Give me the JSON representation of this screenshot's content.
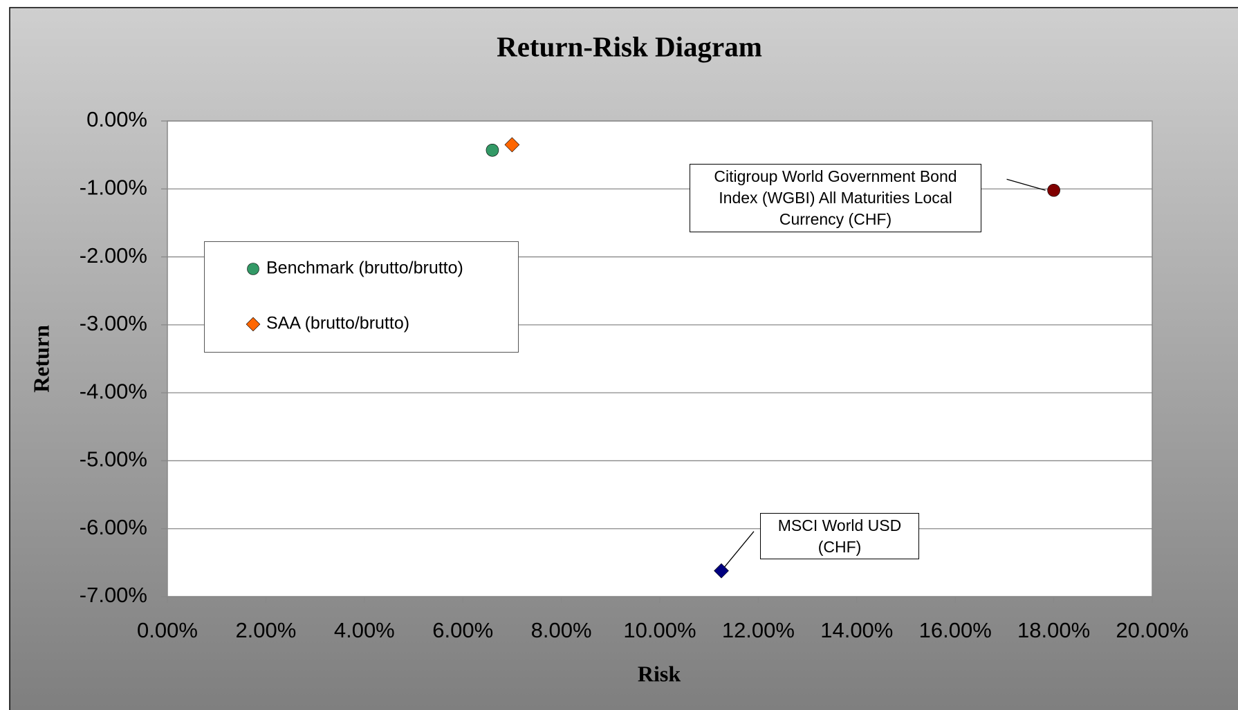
{
  "chart_data": {
    "type": "scatter",
    "title": "Return-Risk Diagram",
    "x_label": "Risk",
    "y_label": "Return",
    "xlim": [
      0,
      20
    ],
    "ylim": [
      -7,
      0
    ],
    "xticks": [
      {
        "value": 0,
        "label": "0.00%"
      },
      {
        "value": 2,
        "label": "2.00%"
      },
      {
        "value": 4,
        "label": "4.00%"
      },
      {
        "value": 6,
        "label": "6.00%"
      },
      {
        "value": 8,
        "label": "8.00%"
      },
      {
        "value": 10,
        "label": "10.00%"
      },
      {
        "value": 12,
        "label": "12.00%"
      },
      {
        "value": 14,
        "label": "14.00%"
      },
      {
        "value": 16,
        "label": "16.00%"
      },
      {
        "value": 18,
        "label": "18.00%"
      },
      {
        "value": 20,
        "label": "20.00%"
      }
    ],
    "yticks": [
      {
        "value": 0,
        "label": "0.00%"
      },
      {
        "value": -1,
        "label": "-1.00%"
      },
      {
        "value": -2,
        "label": "-2.00%"
      },
      {
        "value": -3,
        "label": "-3.00%"
      },
      {
        "value": -4,
        "label": "-4.00%"
      },
      {
        "value": -5,
        "label": "-5.00%"
      },
      {
        "value": -6,
        "label": "-6.00%"
      },
      {
        "value": -7,
        "label": "-7.00%"
      }
    ],
    "grid": true,
    "legend": "left",
    "series": [
      {
        "name": "Benchmark (brutto/brutto)",
        "color": "#339966",
        "marker": "circle",
        "x": [
          6.6
        ],
        "values": [
          -0.43
        ]
      },
      {
        "name": "SAA (brutto/brutto)",
        "color": "#ff6600",
        "marker": "diamond",
        "x": [
          7.0
        ],
        "values": [
          -0.35
        ]
      }
    ],
    "annotations": [
      {
        "text": "Citigroup World Government Bond Index (WGBI) All Maturities Local Currency (CHF)",
        "color": "#800000",
        "marker": "circle",
        "x": 18.0,
        "y": -1.02
      },
      {
        "text": "MSCI World USD (CHF)",
        "color": "#000080",
        "marker": "diamond",
        "x": 11.25,
        "y": -6.62
      }
    ]
  }
}
